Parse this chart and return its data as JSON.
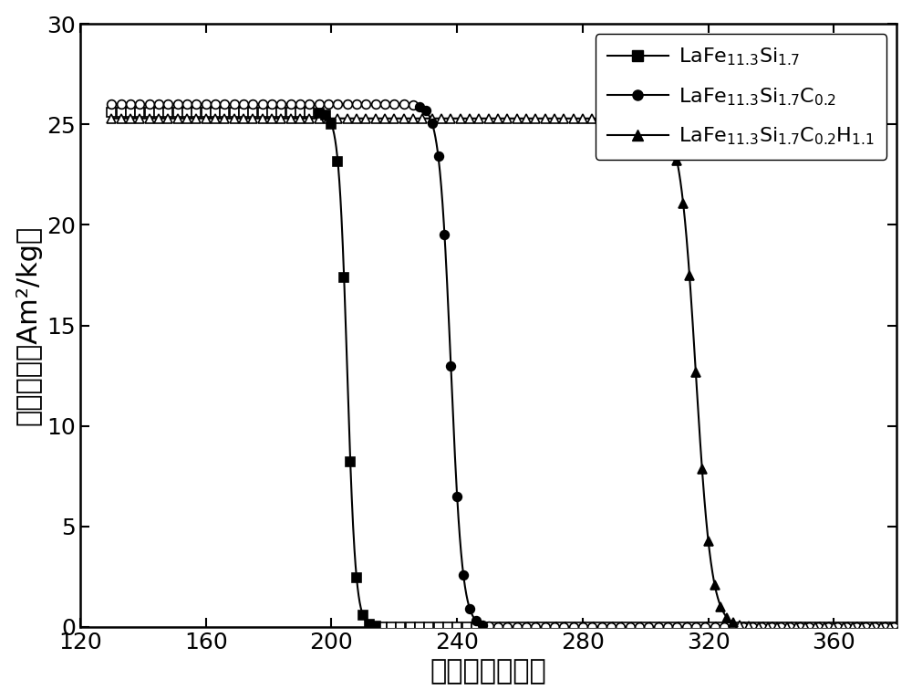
{
  "xlabel": "温度（开尔文）",
  "ylabel": "磁化强度（Am²/kg）",
  "xlim": [
    120,
    380
  ],
  "ylim": [
    0,
    30
  ],
  "xticks": [
    120,
    160,
    200,
    240,
    280,
    320,
    360
  ],
  "yticks": [
    0,
    5,
    10,
    15,
    20,
    25,
    30
  ],
  "bg_color": "#ffffff",
  "figsize": [
    10.0,
    7.67
  ],
  "dpi": 100,
  "font_size_labels": 22,
  "font_size_ticks": 18,
  "font_size_legend": 16,
  "linewidth": 1.5,
  "series": [
    {
      "Tc": 205,
      "steepness": 0.75,
      "plateau": 25.6,
      "marker": "s",
      "T_start": 130,
      "T_end": 382,
      "fill_start": 196,
      "fill_end": 214
    },
    {
      "Tc": 238,
      "steepness": 0.55,
      "plateau": 26.0,
      "marker": "o",
      "T_start": 130,
      "T_end": 382,
      "fill_start": 228,
      "fill_end": 248
    },
    {
      "Tc": 316,
      "steepness": 0.4,
      "plateau": 25.3,
      "marker": "^",
      "T_start": 130,
      "T_end": 385,
      "fill_start": 306,
      "fill_end": 328
    }
  ],
  "legend_labels": [
    "LaFe$_{11.3}$Si$_{1.7}$",
    "LaFe$_{11.3}$Si$_{1.7}$C$_{0.2}$",
    "LaFe$_{11.3}$Si$_{1.7}$C$_{0.2}$H$_{1.1}$"
  ]
}
